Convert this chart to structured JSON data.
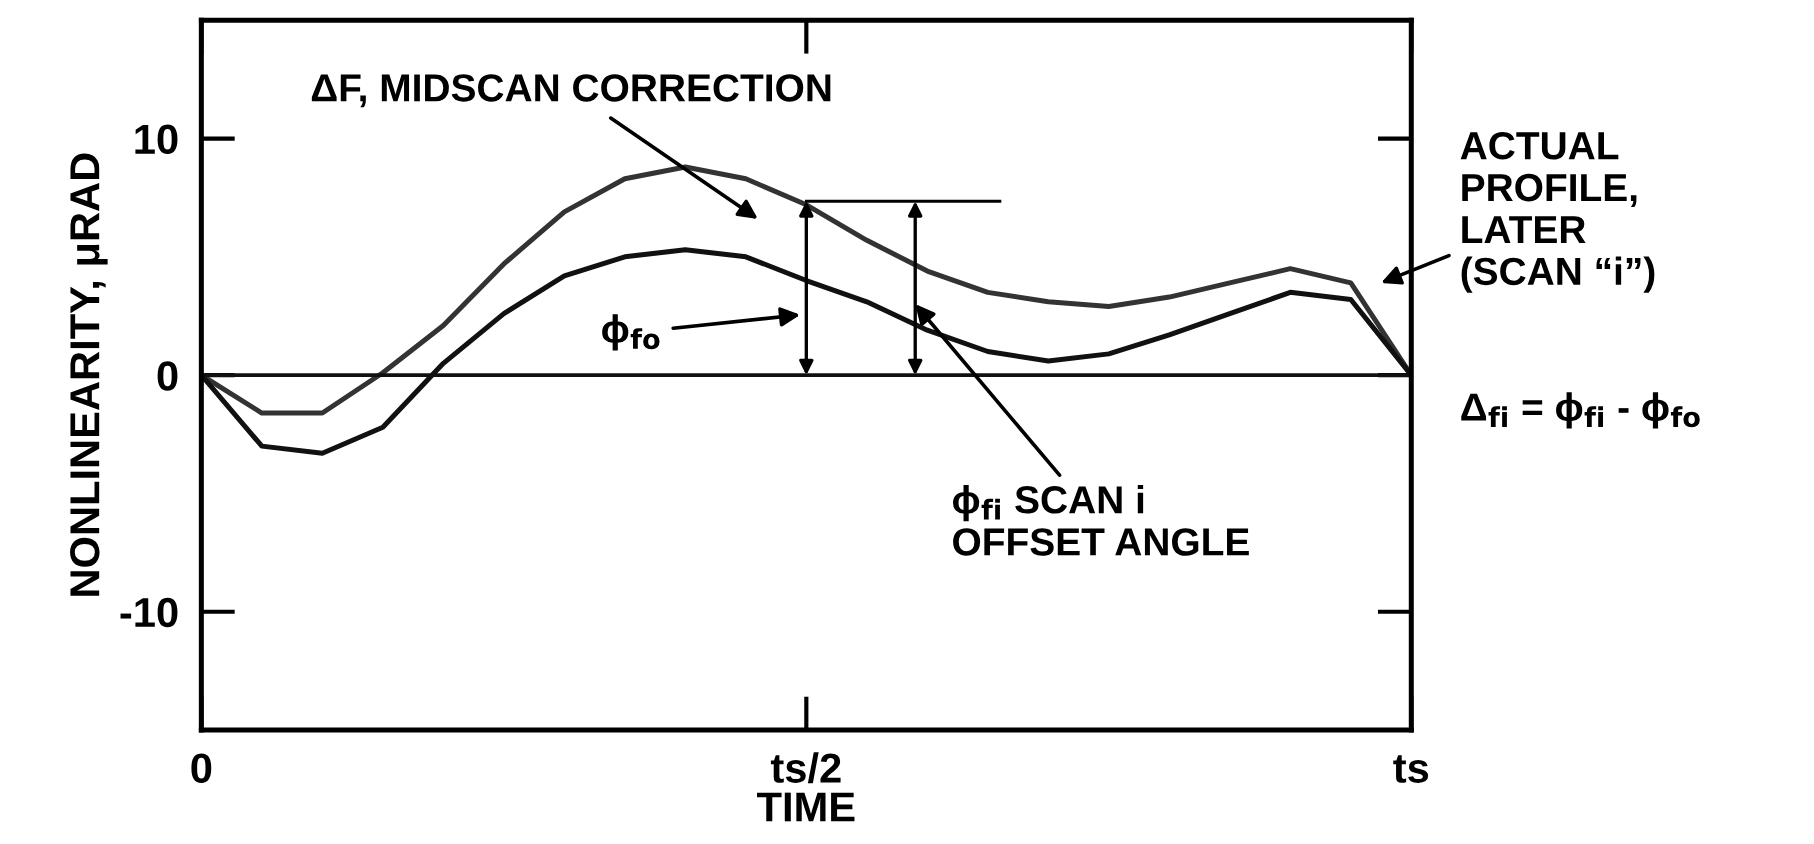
{
  "chart_data": {
    "type": "line",
    "xlabel": "TIME",
    "ylabel": "NONLINEARITY, μRAD",
    "categories": [
      "0",
      null,
      null,
      null,
      null,
      null,
      null,
      null,
      null,
      null,
      "ts/2",
      null,
      null,
      null,
      null,
      null,
      null,
      null,
      null,
      null,
      "ts"
    ],
    "ylim": [
      -15,
      15
    ],
    "yticks": [
      -10,
      0,
      10
    ],
    "grid": false,
    "legend": false,
    "marker": "none",
    "line_style": "solid",
    "series": [
      {
        "color": "#333333",
        "values": [
          0,
          -1.6,
          -1.6,
          0.1,
          2.1,
          4.7,
          6.9,
          8.3,
          8.8,
          8.3,
          7.2,
          5.7,
          4.4,
          3.5,
          3.1,
          2.9,
          3.3,
          3.9,
          4.5,
          3.9,
          0
        ]
      },
      {
        "color": "#111111",
        "values": [
          0,
          -3.0,
          -3.3,
          -2.2,
          0.5,
          2.6,
          4.2,
          5.0,
          5.3,
          5.0,
          4.0,
          3.1,
          1.9,
          1.0,
          0.6,
          0.9,
          1.7,
          2.6,
          3.5,
          3.2,
          0
        ]
      }
    ],
    "ref_lines": [
      {
        "axis": "y",
        "value": 0,
        "color": "#111111"
      }
    ],
    "annotations": [
      "ΔF, MIDSCAN CORRECTION",
      "ϕ$_{fo}$",
      "ϕ$_{fi}$ SCAN i\nOFFSET ANGLE",
      "ACTUAL\nPROFILE,\nLATER\n(SCAN “i”)",
      "Δ$_{fi}$ = ϕ$_{fi}$ - ϕ$_{fo}$"
    ]
  }
}
